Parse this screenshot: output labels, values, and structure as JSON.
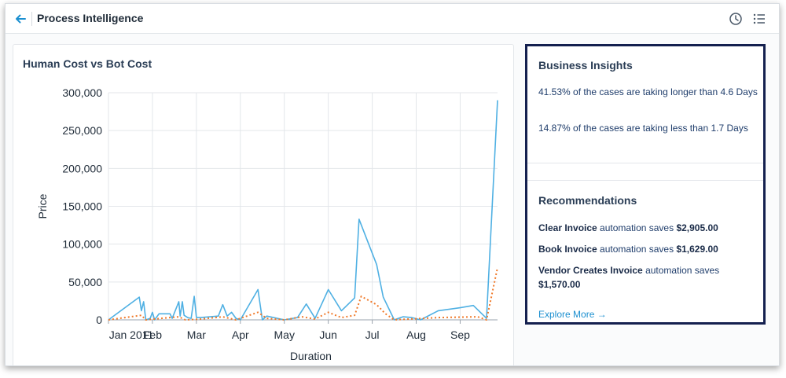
{
  "header": {
    "title": "Process Intelligence",
    "back_icon": "arrow-left-icon",
    "history_icon": "clock-icon",
    "menu_icon": "list-icon"
  },
  "chart_card": {
    "title": "Human Cost vs Bot Cost"
  },
  "chart_data": {
    "type": "line",
    "title": "Human Cost vs Bot Cost",
    "xlabel": "Duration",
    "ylabel": "Price",
    "ylim": [
      0,
      300000
    ],
    "yticks": [
      "0",
      "50,000",
      "100,000",
      "150,000",
      "200,000",
      "250,000",
      "300,000"
    ],
    "x_tick_labels": [
      "Jan 2011",
      "Feb",
      "Mar",
      "Apr",
      "May",
      "Jun",
      "Jul",
      "Aug",
      "Sep"
    ],
    "grid": true,
    "x_units": "months since 2011-01-01",
    "series": [
      {
        "name": "Human Cost",
        "color": "#4fb0e3",
        "style": "solid",
        "points": [
          [
            0.0,
            0
          ],
          [
            0.7,
            30000
          ],
          [
            0.75,
            12000
          ],
          [
            0.8,
            24000
          ],
          [
            0.85,
            0
          ],
          [
            0.95,
            2000
          ],
          [
            1.0,
            10000
          ],
          [
            1.05,
            0
          ],
          [
            1.15,
            8000
          ],
          [
            1.4,
            8000
          ],
          [
            1.45,
            2000
          ],
          [
            1.6,
            24000
          ],
          [
            1.63,
            5000
          ],
          [
            1.68,
            24000
          ],
          [
            1.72,
            6000
          ],
          [
            1.8,
            3000
          ],
          [
            1.88,
            2000
          ],
          [
            1.95,
            31000
          ],
          [
            2.0,
            3000
          ],
          [
            2.1,
            3000
          ],
          [
            2.5,
            5000
          ],
          [
            2.6,
            20000
          ],
          [
            2.7,
            5000
          ],
          [
            2.8,
            10000
          ],
          [
            2.9,
            2000
          ],
          [
            3.0,
            0
          ],
          [
            3.4,
            40000
          ],
          [
            3.5,
            0
          ],
          [
            3.6,
            5000
          ],
          [
            4.0,
            0
          ],
          [
            4.3,
            3000
          ],
          [
            4.5,
            21000
          ],
          [
            4.7,
            2000
          ],
          [
            5.0,
            40000
          ],
          [
            5.3,
            12000
          ],
          [
            5.6,
            29000
          ],
          [
            5.7,
            133000
          ],
          [
            6.1,
            73000
          ],
          [
            6.25,
            30000
          ],
          [
            6.5,
            0
          ],
          [
            6.7,
            4000
          ],
          [
            6.9,
            3000
          ],
          [
            7.1,
            0
          ],
          [
            7.5,
            12000
          ],
          [
            8.0,
            16000
          ],
          [
            8.3,
            19000
          ],
          [
            8.6,
            2000
          ],
          [
            8.85,
            290000
          ]
        ]
      },
      {
        "name": "Bot Cost",
        "color": "#f07a2b",
        "style": "dotted",
        "points": [
          [
            0.0,
            0
          ],
          [
            0.75,
            6000
          ],
          [
            0.85,
            0
          ],
          [
            1.2,
            2000
          ],
          [
            1.6,
            4000
          ],
          [
            1.75,
            0
          ],
          [
            2.1,
            1000
          ],
          [
            2.6,
            4000
          ],
          [
            2.9,
            0
          ],
          [
            3.4,
            10000
          ],
          [
            3.6,
            2000
          ],
          [
            4.0,
            0
          ],
          [
            4.4,
            4000
          ],
          [
            4.7,
            1000
          ],
          [
            5.0,
            10000
          ],
          [
            5.3,
            3000
          ],
          [
            5.6,
            6000
          ],
          [
            5.75,
            31000
          ],
          [
            6.1,
            20000
          ],
          [
            6.3,
            8000
          ],
          [
            6.5,
            0
          ],
          [
            7.5,
            3000
          ],
          [
            8.4,
            4000
          ],
          [
            8.6,
            0
          ],
          [
            8.85,
            69000
          ]
        ]
      }
    ]
  },
  "insights": {
    "title": "Business Insights",
    "items": [
      "41.53% of the cases are taking longer than 4.6 Days",
      "14.87% of the cases are taking less than 1.7 Days"
    ]
  },
  "recommendations": {
    "title": "Recommendations",
    "items": [
      {
        "name": "Clear Invoice",
        "middle": " automation saves ",
        "amount": "$2,905.00"
      },
      {
        "name": "Book Invoice",
        "middle": " automation saves ",
        "amount": "$1,629.00"
      },
      {
        "name": "Vendor Creates Invoice",
        "middle": " automation saves ",
        "amount": "$1,570.00"
      }
    ],
    "explore_label": "Explore More",
    "explore_icon": "arrow-right-icon"
  },
  "colors": {
    "accent": "#1b8fd0",
    "highlight_border": "#14204f",
    "human_line": "#4fb0e3",
    "bot_line": "#f07a2b"
  }
}
